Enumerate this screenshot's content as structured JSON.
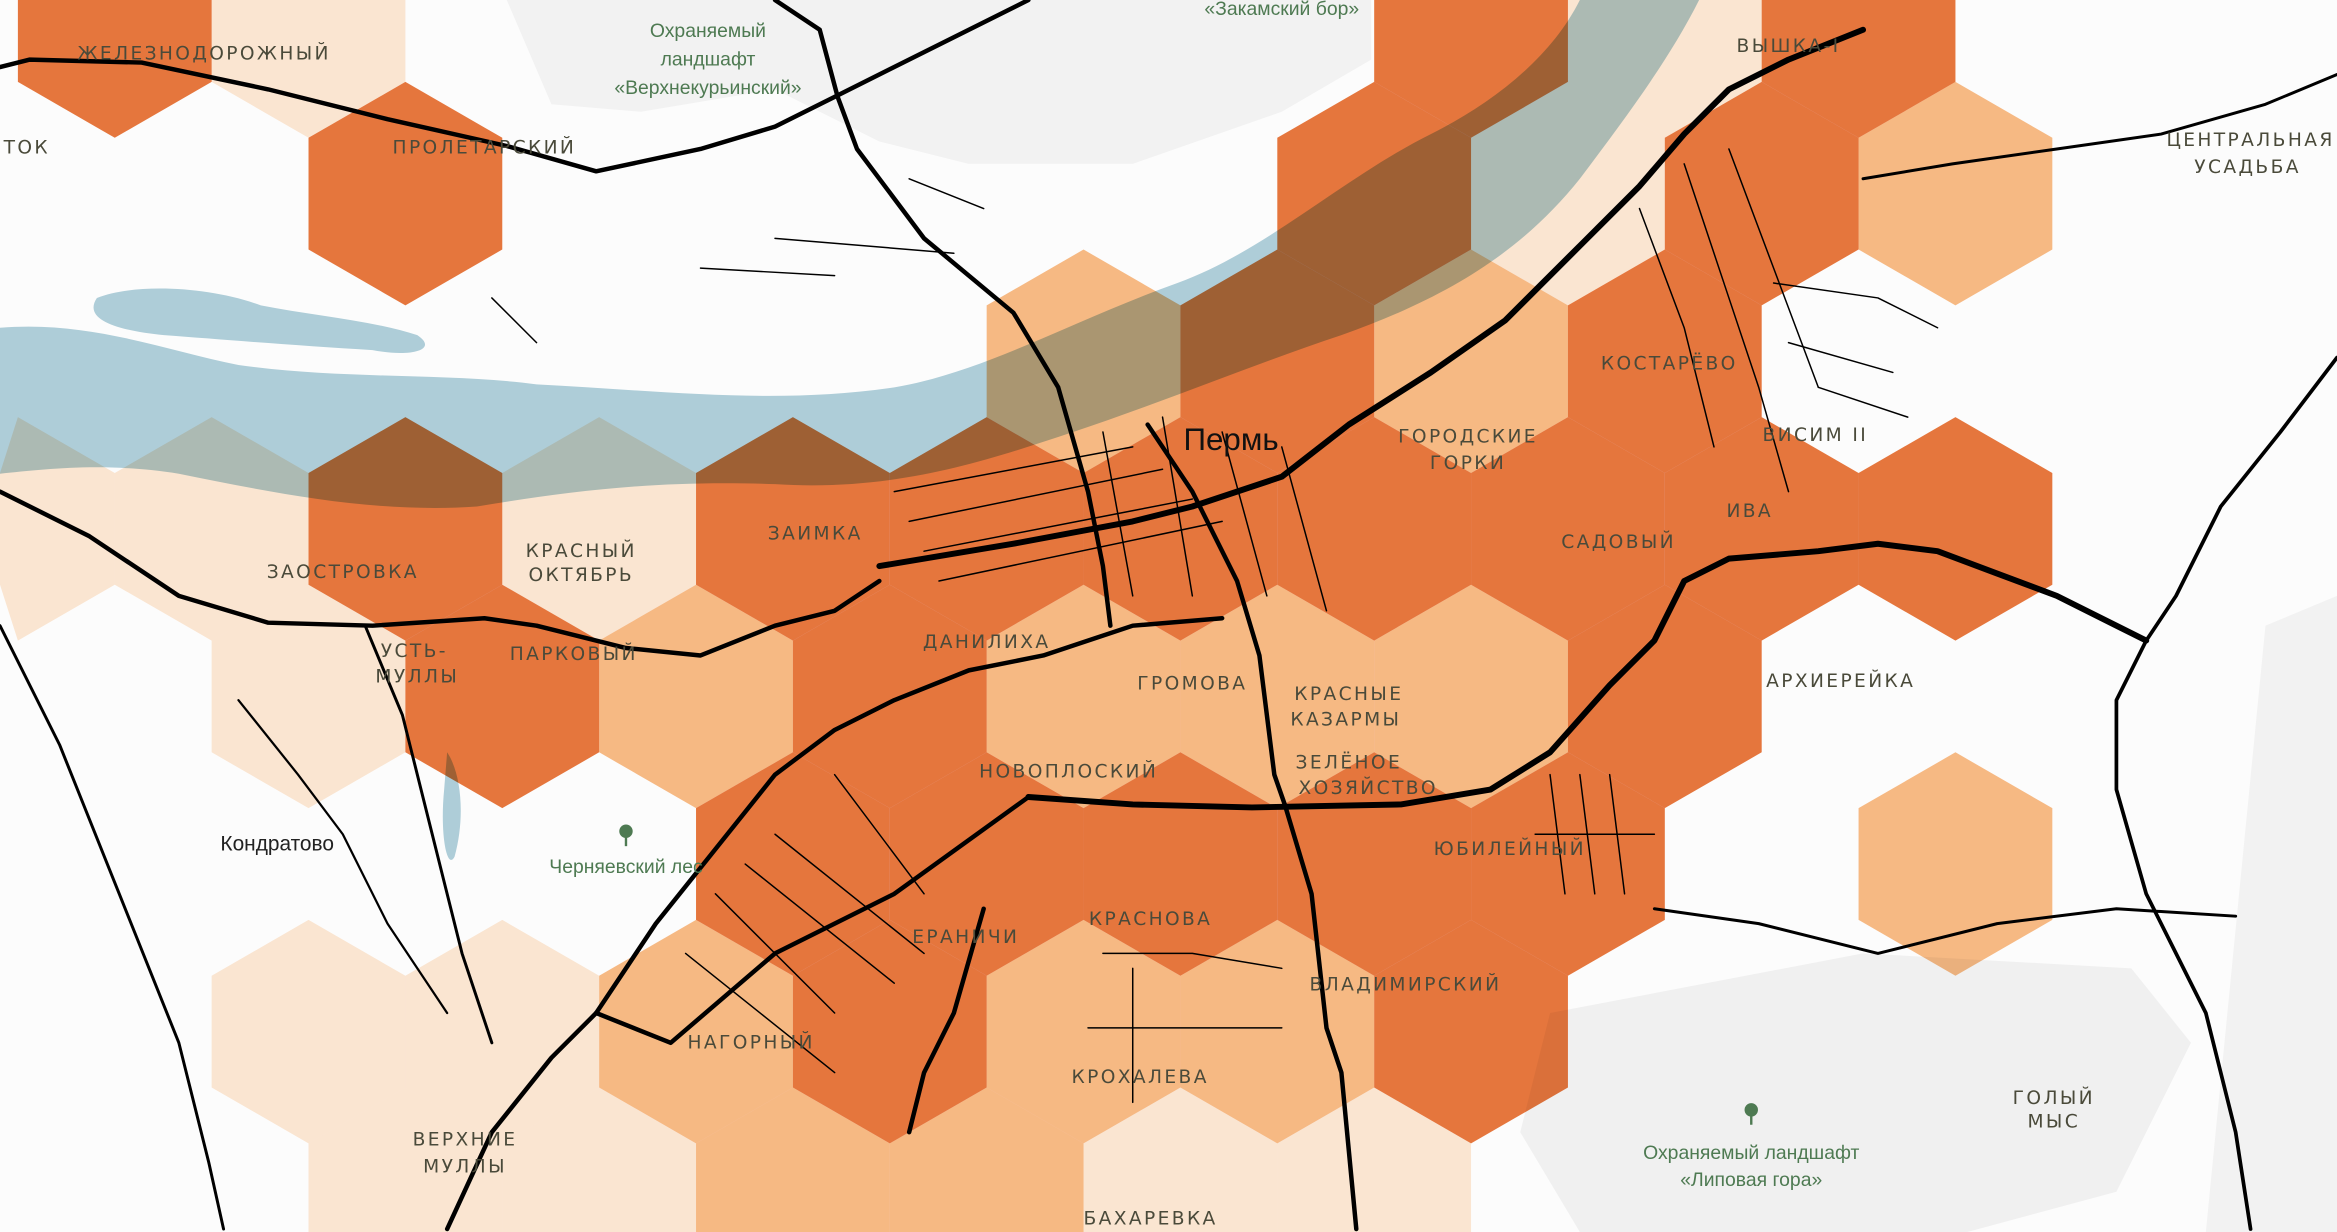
{
  "map": {
    "level_colors": {
      "0": "none",
      "1": "#fde8d4",
      "2": "#f9bb85",
      "3": "#e8773d"
    },
    "colors": {
      "water": "#aecdd8",
      "forest": "#b4bd86",
      "protected_area": "#f2f2f2",
      "road": "#000000",
      "background": "#fcfcfc"
    },
    "hex_levels": [
      {
        "row": -1,
        "cells": [
          3,
          1,
          0,
          0,
          0,
          0,
          0,
          3,
          1,
          3,
          0,
          0
        ]
      },
      {
        "row": 0,
        "cells": [
          0,
          0,
          3,
          0,
          0,
          0,
          0,
          3,
          1,
          3,
          2,
          0
        ]
      },
      {
        "row": 1,
        "cells": [
          0,
          0,
          0,
          0,
          0,
          2,
          3,
          2,
          3,
          0,
          0,
          0
        ]
      },
      {
        "row": 2,
        "cells": [
          1,
          1,
          3,
          1,
          3,
          3,
          3,
          3,
          3,
          3,
          3,
          0
        ]
      },
      {
        "row": 3,
        "cells": [
          0,
          1,
          3,
          2,
          3,
          2,
          2,
          2,
          3,
          0,
          0,
          0
        ]
      },
      {
        "row": 4,
        "cells": [
          0,
          0,
          0,
          0,
          3,
          3,
          3,
          3,
          3,
          0,
          2,
          0
        ]
      },
      {
        "row": 5,
        "cells": [
          0,
          1,
          1,
          2,
          3,
          2,
          2,
          3,
          0,
          0,
          0,
          0
        ]
      },
      {
        "row": 6,
        "cells": [
          0,
          0,
          1,
          1,
          2,
          2,
          1,
          1,
          0,
          0,
          0,
          0
        ]
      },
      {
        "row": 7,
        "cells": [
          0,
          1,
          1,
          1,
          2,
          1,
          1,
          0,
          0,
          0,
          0,
          0
        ]
      }
    ],
    "city": "Пермь",
    "town": "Кондратово",
    "districts": {
      "zheleznodorozhny": "ЖЕЛЕЗНОДОРОЖНЫЙ",
      "proletarsky": "ПРОЛЕТАРСКИЙ",
      "tok": "ТОК",
      "vyshka": "ВЫШКА-I",
      "tsentralnaya_1": "ЦЕНТРАЛЬНАЯ",
      "tsentralnaya_2": "УСАДЬБА",
      "gorodskie_1": "ГОРОДСКИЕ",
      "gorodskie_2": "ГОРКИ",
      "kostarevo": "КОСТАРЁВО",
      "visim": "ВИСИМ II",
      "iva": "ИВА",
      "sadovy": "САДОВЫЙ",
      "zaimka": "ЗАИМКА",
      "krasny_1": "КРАСНЫЙ",
      "krasny_2": "ОКТЯБРЬ",
      "zaostrovka": "ЗАОСТРОВКА",
      "ust_1": "УСТЬ-",
      "ust_2": "МУЛЛЫ",
      "parkovy": "ПАРКОВЫЙ",
      "danilikha": "ДАНИЛИХА",
      "gromova": "ГРОМОВА",
      "kazarmy_1": "КРАСНЫЕ",
      "kazarmy_2": "КАЗАРМЫ",
      "arkhiereyka": "АРХИЕРЕЙКА",
      "zelenoe_1": "ЗЕЛЁНОЕ",
      "zelenoe_2": "ХОЗЯЙСТВО",
      "novoplosky": "НОВОПЛОСКИЙ",
      "yubileyny": "ЮБИЛЕЙНЫЙ",
      "krasnova": "КРАСНОВА",
      "eranichi": "ЕРАНИЧИ",
      "vladimirsky": "ВЛАДИМИРСКИЙ",
      "nagorny": "НАГОРНЫЙ",
      "krokhaleva": "КРОХАЛЕВА",
      "goly_1": "ГОЛЫЙ",
      "goly_2": "МЫС",
      "verkhnie_1": "ВЕРХНИЕ",
      "verkhnie_2": "МУЛЛЫ",
      "bakharevka": "БАХАРЕВКА"
    },
    "nature": {
      "verkhnekurinsky_1": "Охраняемый",
      "verkhnekurinsky_2": "ландшафт",
      "verkhnekurinsky_3": "«Верхнекурьинский»",
      "zakamsky": "«Закамский бор»",
      "chernyaevsky": "Черняевский лес",
      "lipovaya_1": "Охраняемый ландшафт",
      "lipovaya_2": "«Липовая гора»"
    },
    "icons": [
      "tree-icon"
    ]
  }
}
